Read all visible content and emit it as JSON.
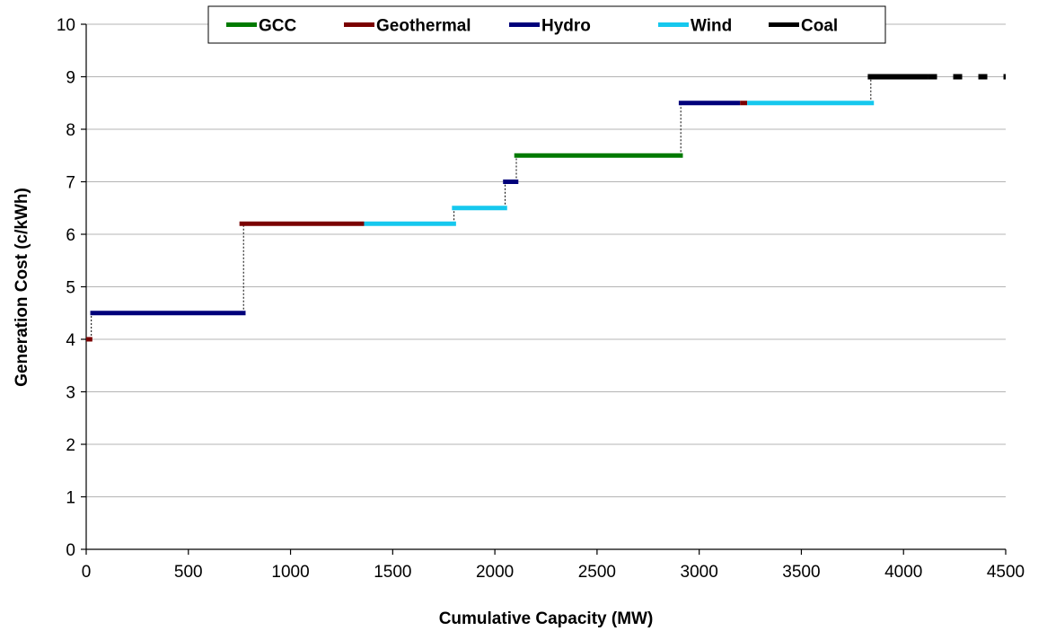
{
  "chart_data": {
    "type": "line",
    "title": "",
    "xlabel": "Cumulative Capacity (MW)",
    "ylabel": "Generation Cost (c/kWh)",
    "xlim": [
      0,
      4500
    ],
    "ylim": [
      0,
      10
    ],
    "x_ticks": [
      "0",
      "500",
      "1000",
      "1500",
      "2000",
      "2500",
      "3000",
      "3500",
      "4000",
      "4500"
    ],
    "y_ticks": [
      "0",
      "1",
      "2",
      "3",
      "4",
      "5",
      "6",
      "7",
      "8",
      "9",
      "10"
    ],
    "grid": "horizontal",
    "legend_position": "top",
    "legend": [
      {
        "name": "GCC",
        "color": "#007a00"
      },
      {
        "name": "Geothermal",
        "color": "#7a0000"
      },
      {
        "name": "Hydro",
        "color": "#00007a"
      },
      {
        "name": "Wind",
        "color": "#16c8ee"
      },
      {
        "name": "Coal",
        "color": "#000000"
      }
    ],
    "segments": [
      {
        "series": "Geothermal",
        "x0": 0,
        "x1": 30,
        "y": 4.0
      },
      {
        "series": "Hydro",
        "x0": 20,
        "x1": 780,
        "y": 4.5
      },
      {
        "series": "Geothermal",
        "x0": 750,
        "x1": 1360,
        "y": 6.2
      },
      {
        "series": "Wind",
        "x0": 1360,
        "x1": 1810,
        "y": 6.2
      },
      {
        "series": "Wind",
        "x0": 1790,
        "x1": 2060,
        "y": 6.5
      },
      {
        "series": "Hydro",
        "x0": 2040,
        "x1": 2115,
        "y": 7.0
      },
      {
        "series": "GCC",
        "x0": 2095,
        "x1": 2920,
        "y": 7.5
      },
      {
        "series": "Hydro",
        "x0": 2900,
        "x1": 3200,
        "y": 8.5
      },
      {
        "series": "Geothermal",
        "x0": 3200,
        "x1": 3235,
        "y": 8.5
      },
      {
        "series": "Wind",
        "x0": 3235,
        "x1": 3855,
        "y": 8.5
      },
      {
        "series": "Coal",
        "x0": 3825,
        "x1": 4500,
        "y": 9.0,
        "dashed_from": 4120
      }
    ],
    "steps": [
      {
        "x": 25,
        "y0": 4.0,
        "y1": 4.5
      },
      {
        "x": 770,
        "y0": 4.5,
        "y1": 6.2
      },
      {
        "x": 1800,
        "y0": 6.2,
        "y1": 6.5
      },
      {
        "x": 2050,
        "y0": 6.5,
        "y1": 7.0
      },
      {
        "x": 2105,
        "y0": 7.0,
        "y1": 7.5
      },
      {
        "x": 2910,
        "y0": 7.5,
        "y1": 8.5
      },
      {
        "x": 3840,
        "y0": 8.5,
        "y1": 9.0
      }
    ]
  }
}
